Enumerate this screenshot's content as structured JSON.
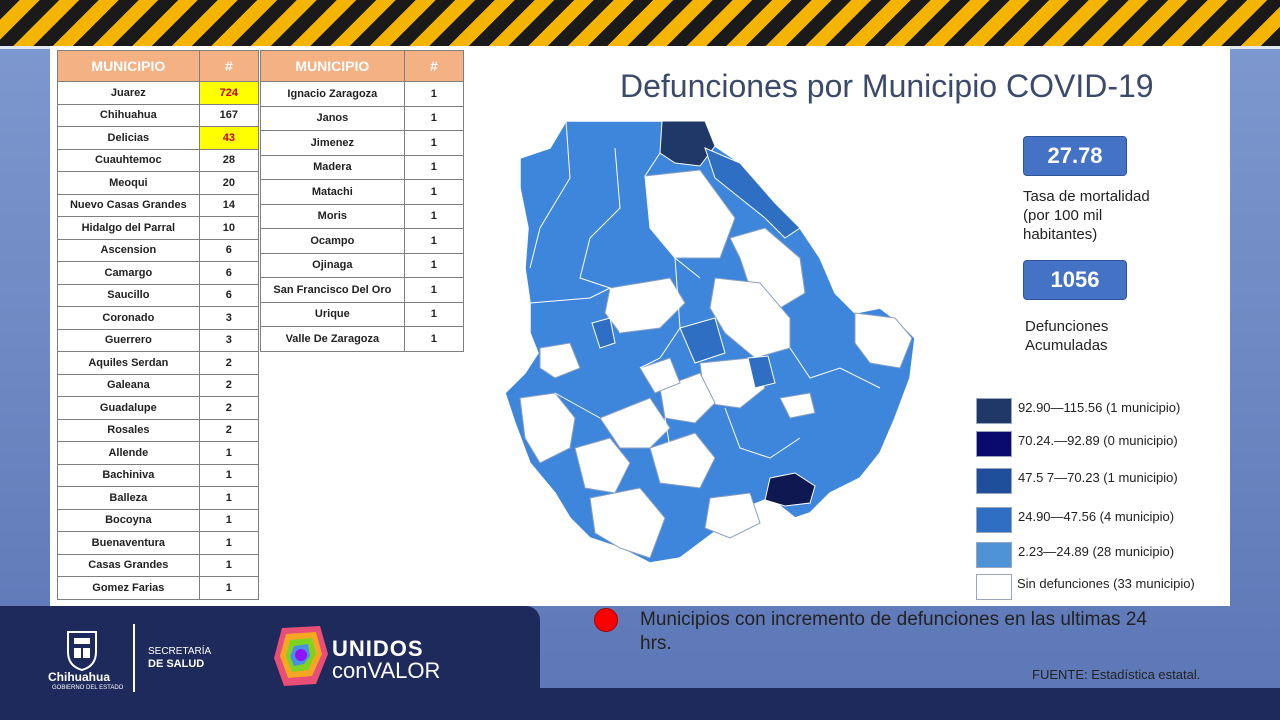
{
  "title": "Defunciones por Municipio COVID-19",
  "table_left": {
    "headers": [
      "MUNICIPIO",
      "#"
    ],
    "rows": [
      {
        "name": "Juarez",
        "value": "724",
        "highlight": true
      },
      {
        "name": "Chihuahua",
        "value": "167",
        "highlight": false
      },
      {
        "name": "Delicias",
        "value": "43",
        "highlight": true
      },
      {
        "name": "Cuauhtemoc",
        "value": "28",
        "highlight": false
      },
      {
        "name": "Meoqui",
        "value": "20",
        "highlight": false
      },
      {
        "name": "Nuevo Casas Grandes",
        "value": "14",
        "highlight": false
      },
      {
        "name": "Hidalgo del Parral",
        "value": "10",
        "highlight": false
      },
      {
        "name": "Ascension",
        "value": "6",
        "highlight": false
      },
      {
        "name": "Camargo",
        "value": "6",
        "highlight": false
      },
      {
        "name": "Saucillo",
        "value": "6",
        "highlight": false
      },
      {
        "name": "Coronado",
        "value": "3",
        "highlight": false
      },
      {
        "name": "Guerrero",
        "value": "3",
        "highlight": false
      },
      {
        "name": "Aquiles Serdan",
        "value": "2",
        "highlight": false
      },
      {
        "name": "Galeana",
        "value": "2",
        "highlight": false
      },
      {
        "name": "Guadalupe",
        "value": "2",
        "highlight": false
      },
      {
        "name": "Rosales",
        "value": "2",
        "highlight": false
      },
      {
        "name": "Allende",
        "value": "1",
        "highlight": false
      },
      {
        "name": "Bachiniva",
        "value": "1",
        "highlight": false
      },
      {
        "name": "Balleza",
        "value": "1",
        "highlight": false
      },
      {
        "name": "Bocoyna",
        "value": "1",
        "highlight": false
      },
      {
        "name": "Buenaventura",
        "value": "1",
        "highlight": false
      },
      {
        "name": "Casas Grandes",
        "value": "1",
        "highlight": false
      },
      {
        "name": "Gomez Farias",
        "value": "1",
        "highlight": false
      }
    ]
  },
  "table_right": {
    "headers": [
      "MUNICIPIO",
      "#"
    ],
    "rows": [
      {
        "name": "Ignacio Zaragoza",
        "value": "1"
      },
      {
        "name": "Janos",
        "value": "1"
      },
      {
        "name": "Jimenez",
        "value": "1"
      },
      {
        "name": "Madera",
        "value": "1"
      },
      {
        "name": "Matachi",
        "value": "1"
      },
      {
        "name": "Moris",
        "value": "1"
      },
      {
        "name": "Ocampo",
        "value": "1"
      },
      {
        "name": "Ojinaga",
        "value": "1"
      },
      {
        "name": "San Francisco Del Oro",
        "value": "1"
      },
      {
        "name": "Urique",
        "value": "1"
      },
      {
        "name": "Valle De Zaragoza",
        "value": "1"
      }
    ]
  },
  "stats": {
    "rate_value": "27.78",
    "rate_label": "Tasa de mortalidad\n(por 100 mil\nhabitantes)",
    "deaths_value": "1056",
    "deaths_label": "Defunciones\nAcumuladas"
  },
  "legend": [
    {
      "label": "92.90—115.56 (1 municipio)",
      "color": "#1f3868"
    },
    {
      "label": "70.24.—92.89 (0 municipio)",
      "color": "#0a0a6e"
    },
    {
      "label": "47.5 7—70.23 (1 municipio)",
      "color": "#1f4e9a"
    },
    {
      "label": "24.90—47.56 (4 municipio)",
      "color": "#2e6fc4"
    },
    {
      "label": "2.23—24.89 (28 municipio)",
      "color": "#4d93d6"
    },
    {
      "label": "Sin defunciones (33 municipio)",
      "color": "#ffffff"
    }
  ],
  "note": "Municipios  con incremento de defunciones en las ultimas 24 hrs.",
  "source": "FUENTE: Estadística estatal.",
  "footer": {
    "state_name": "Chihuahua",
    "state_sub": "GOBIERNO DEL ESTADO",
    "dept_line1": "SECRETARÍA",
    "dept_line2": "DE SALUD",
    "campaign_line1": "UNIDOS",
    "campaign_line2": "conVALOR"
  },
  "colors": {
    "header_fill": "#f4b183",
    "highlight": "#ffff00",
    "stat_box": "#4472c4",
    "base_blue": "#3d86dc"
  }
}
